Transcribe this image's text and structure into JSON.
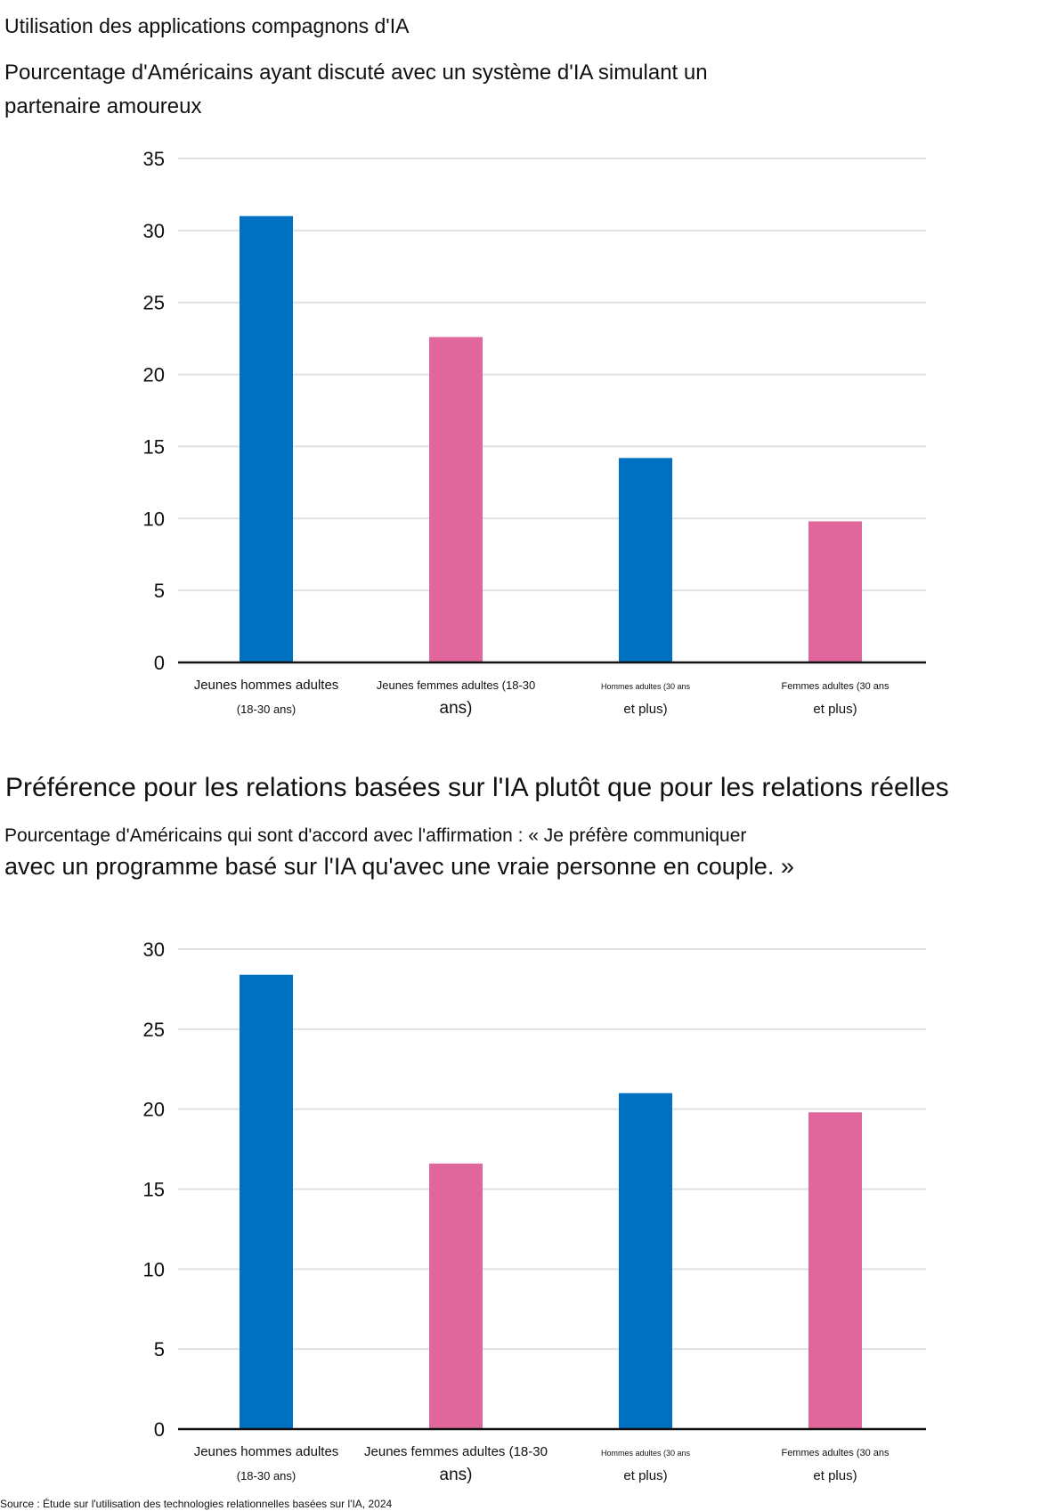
{
  "charts": [
    {
      "title": "Utilisation des applications compagnons d'IA",
      "subtitle_line1": "Pourcentage d'Américains ayant discuté avec un système d'IA simulant un",
      "subtitle_line2": "partenaire amoureux"
    },
    {
      "title": "Préférence pour les relations basées sur l'IA plutôt que pour les relations réelles",
      "subtitle_line1": "Pourcentage d'Américains qui sont d'accord avec l'affirmation : « Je préfère communiquer",
      "subtitle_line2": "avec un programme basé sur l'IA qu'avec une vraie personne en couple. »"
    }
  ],
  "source": "Source : Étude sur l'utilisation des technologies relationnelles basées sur l'IA, 2024",
  "colors": {
    "men": "#0070c0",
    "women": "#e0679b",
    "grid": "#e0e0e0",
    "axis": "#111111"
  },
  "chart_data": [
    {
      "type": "bar",
      "title": "Utilisation des applications compagnons d'IA",
      "subtitle": "Pourcentage d'Américains ayant discuté avec un système d'IA simulant un partenaire amoureux",
      "categories": [
        "Jeunes hommes adultes (18-30 ans)",
        "Jeunes femmes adultes (18-30 ans)",
        "Hommes adultes (30 ans et plus)",
        "Femmes adultes (30 ans et plus)"
      ],
      "category_label_lines": [
        [
          "Jeunes hommes adultes",
          "(18-30 ans)"
        ],
        [
          "Jeunes femmes adultes (18-30",
          "ans)"
        ],
        [
          "Hommes adultes (30 ans",
          "et plus)"
        ],
        [
          "Femmes adultes (30 ans",
          "et plus)"
        ]
      ],
      "values": [
        31,
        22.6,
        14.2,
        9.8
      ],
      "bar_colors": [
        "#0070c0",
        "#e0679b",
        "#0070c0",
        "#e0679b"
      ],
      "yticks": [
        0,
        5,
        10,
        15,
        20,
        25,
        30,
        35
      ],
      "ylim": [
        0,
        35
      ],
      "xlabel": "",
      "ylabel": "",
      "grid": true,
      "legend": "none"
    },
    {
      "type": "bar",
      "title": "Préférence pour les relations basées sur l'IA plutôt que pour les relations réelles",
      "subtitle": "Pourcentage d'Américains qui sont d'accord avec l'affirmation : « Je préfère communiquer avec un programme basé sur l'IA qu'avec une vraie personne en couple. »",
      "categories": [
        "Jeunes hommes adultes (18-30 ans)",
        "Jeunes femmes adultes (18-30 ans)",
        "Hommes adultes (30 ans et plus)",
        "Femmes adultes (30 ans et plus)"
      ],
      "category_label_lines": [
        [
          "Jeunes hommes adultes",
          "(18-30 ans)"
        ],
        [
          "Jeunes femmes adultes (18-30",
          "ans)"
        ],
        [
          "Hommes adultes (30 ans",
          "et plus)"
        ],
        [
          "Femmes adultes (30 ans",
          "et plus)"
        ]
      ],
      "values": [
        28.4,
        16.6,
        21,
        19.8
      ],
      "bar_colors": [
        "#0070c0",
        "#e0679b",
        "#0070c0",
        "#e0679b"
      ],
      "yticks": [
        0,
        5,
        10,
        15,
        20,
        25,
        30
      ],
      "ylim": [
        0,
        30
      ],
      "xlabel": "",
      "ylabel": "",
      "grid": true,
      "legend": "none"
    }
  ]
}
